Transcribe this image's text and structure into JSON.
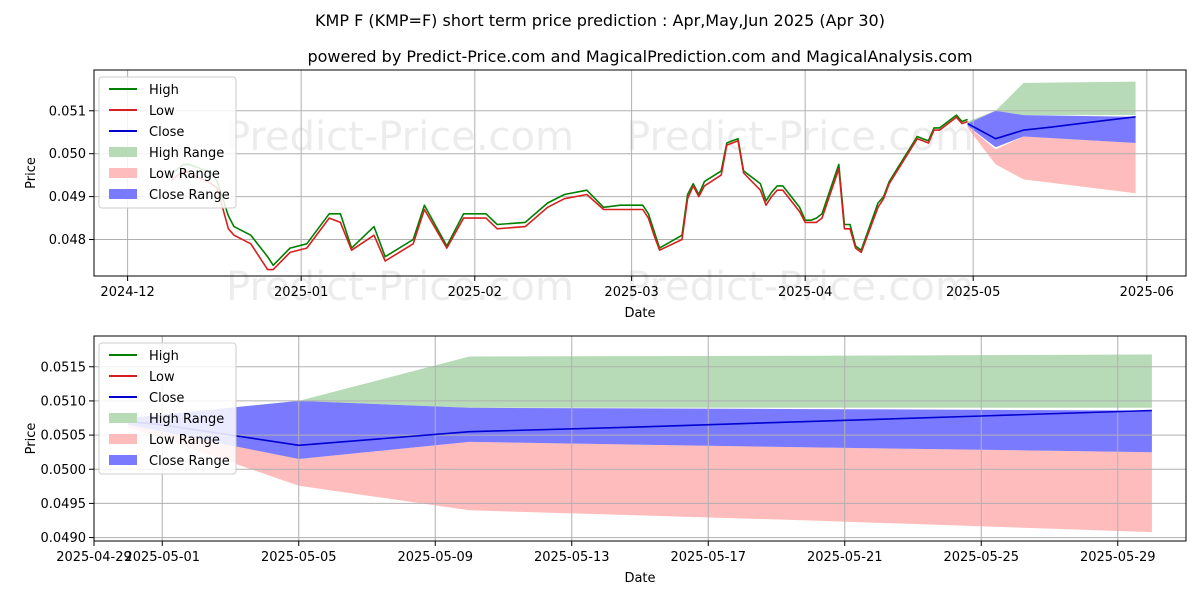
{
  "title": "KMP F (KMP=F) short term price prediction : Apr,May,Jun 2025 (Apr 30)",
  "subtitle": "powered by Predict-Price.com and MagicalPrediction.com and MagicalAnalysis.com",
  "watermark": "Predict-Price.com",
  "colors": {
    "high": "#008000",
    "low": "#d62020",
    "close": "#0000d0",
    "high_range": "#b7dbb7",
    "low_range": "#ffbcbc",
    "close_range": "#7a7aff"
  },
  "chart_data": [
    {
      "type": "line",
      "xlabel": "Date",
      "ylabel": "Price",
      "x_ticks": [
        "2024-12",
        "2025-01",
        "2025-02",
        "2025-03",
        "2025-04",
        "2025-05",
        "2025-06"
      ],
      "y_ticks": [
        "0.048",
        "0.049",
        "0.050",
        "0.051"
      ],
      "xlim": [
        "2024-11-25",
        "2025-06-08"
      ],
      "ylim": [
        0.04715,
        0.05195
      ],
      "grid": true,
      "legend": "upper left",
      "legend_entries": [
        "High",
        "Low",
        "Close",
        "High Range",
        "Low Range",
        "Close Range"
      ],
      "series": [
        {
          "name": "High",
          "x": [
            "2024-12-09",
            "2024-12-11",
            "2024-12-12",
            "2024-12-16",
            "2024-12-17",
            "2024-12-19",
            "2024-12-20",
            "2024-12-23",
            "2024-12-26",
            "2024-12-27",
            "2024-12-30",
            "2025-01-02",
            "2025-01-06",
            "2025-01-08",
            "2025-01-10",
            "2025-01-14",
            "2025-01-16",
            "2025-01-21",
            "2025-01-23",
            "2025-01-27",
            "2025-01-30",
            "2025-02-03",
            "2025-02-05",
            "2025-02-10",
            "2025-02-14",
            "2025-02-17",
            "2025-02-21",
            "2025-02-24",
            "2025-02-27",
            "2025-03-03",
            "2025-03-04",
            "2025-03-05",
            "2025-03-06",
            "2025-03-10",
            "2025-03-11",
            "2025-03-12",
            "2025-03-13",
            "2025-03-14",
            "2025-03-17",
            "2025-03-18",
            "2025-03-19",
            "2025-03-20",
            "2025-03-21",
            "2025-03-24",
            "2025-03-25",
            "2025-03-26",
            "2025-03-27",
            "2025-03-28",
            "2025-03-31",
            "2025-04-01",
            "2025-04-02",
            "2025-04-03",
            "2025-04-04",
            "2025-04-07",
            "2025-04-08",
            "2025-04-09",
            "2025-04-10",
            "2025-04-11",
            "2025-04-14",
            "2025-04-15",
            "2025-04-16",
            "2025-04-21",
            "2025-04-22",
            "2025-04-23",
            "2025-04-24",
            "2025-04-25",
            "2025-04-28",
            "2025-04-29",
            "2025-04-30"
          ],
          "values": [
            0.04955,
            0.04975,
            0.04975,
            0.04955,
            0.04935,
            0.04855,
            0.0483,
            0.0481,
            0.0476,
            0.0474,
            0.0478,
            0.0479,
            0.0486,
            0.0486,
            0.0478,
            0.0483,
            0.0476,
            0.048,
            0.0488,
            0.04785,
            0.0486,
            0.0486,
            0.04835,
            0.0484,
            0.04885,
            0.04905,
            0.04915,
            0.04875,
            0.0488,
            0.0488,
            0.0486,
            0.0482,
            0.0478,
            0.0481,
            0.04905,
            0.0493,
            0.04905,
            0.04935,
            0.0496,
            0.05025,
            0.0503,
            0.05035,
            0.0496,
            0.0493,
            0.0489,
            0.0491,
            0.04925,
            0.04925,
            0.04875,
            0.04845,
            0.04845,
            0.0485,
            0.0486,
            0.04975,
            0.04835,
            0.04835,
            0.04785,
            0.04775,
            0.04885,
            0.049,
            0.04935,
            0.0504,
            0.05035,
            0.0503,
            0.0506,
            0.0506,
            0.0509,
            0.05075,
            0.0508
          ]
        },
        {
          "name": "Low",
          "x": [
            "2024-12-09",
            "2024-12-11",
            "2024-12-12",
            "2024-12-16",
            "2024-12-17",
            "2024-12-19",
            "2024-12-20",
            "2024-12-23",
            "2024-12-26",
            "2024-12-27",
            "2024-12-30",
            "2025-01-02",
            "2025-01-06",
            "2025-01-08",
            "2025-01-10",
            "2025-01-14",
            "2025-01-16",
            "2025-01-21",
            "2025-01-23",
            "2025-01-27",
            "2025-01-30",
            "2025-02-03",
            "2025-02-05",
            "2025-02-10",
            "2025-02-14",
            "2025-02-17",
            "2025-02-21",
            "2025-02-24",
            "2025-02-27",
            "2025-03-03",
            "2025-03-04",
            "2025-03-05",
            "2025-03-06",
            "2025-03-10",
            "2025-03-11",
            "2025-03-12",
            "2025-03-13",
            "2025-03-14",
            "2025-03-17",
            "2025-03-18",
            "2025-03-19",
            "2025-03-20",
            "2025-03-21",
            "2025-03-24",
            "2025-03-25",
            "2025-03-26",
            "2025-03-27",
            "2025-03-28",
            "2025-03-31",
            "2025-04-01",
            "2025-04-02",
            "2025-04-03",
            "2025-04-04",
            "2025-04-07",
            "2025-04-08",
            "2025-04-09",
            "2025-04-10",
            "2025-04-11",
            "2025-04-14",
            "2025-04-15",
            "2025-04-16",
            "2025-04-21",
            "2025-04-22",
            "2025-04-23",
            "2025-04-24",
            "2025-04-25",
            "2025-04-28",
            "2025-04-29",
            "2025-04-30"
          ],
          "values": [
            0.0494,
            0.0496,
            0.04955,
            0.0493,
            0.0492,
            0.04825,
            0.0481,
            0.0479,
            0.0473,
            0.0473,
            0.0477,
            0.0478,
            0.0485,
            0.0484,
            0.04775,
            0.0481,
            0.0475,
            0.0479,
            0.0487,
            0.0478,
            0.0485,
            0.0485,
            0.04825,
            0.0483,
            0.04875,
            0.04895,
            0.04905,
            0.0487,
            0.0487,
            0.0487,
            0.0485,
            0.0481,
            0.04775,
            0.048,
            0.04895,
            0.04925,
            0.049,
            0.04925,
            0.0495,
            0.0502,
            0.05025,
            0.0503,
            0.04955,
            0.04915,
            0.0488,
            0.049,
            0.04915,
            0.04915,
            0.04865,
            0.0484,
            0.0484,
            0.0484,
            0.0485,
            0.04965,
            0.04825,
            0.04825,
            0.0478,
            0.0477,
            0.04875,
            0.04895,
            0.0493,
            0.05035,
            0.0503,
            0.05025,
            0.05055,
            0.05055,
            0.05085,
            0.0507,
            0.05075
          ]
        },
        {
          "name": "Close",
          "x": [
            "2025-04-30",
            "2025-05-05",
            "2025-05-10",
            "2025-05-15",
            "2025-05-20",
            "2025-05-25",
            "2025-05-30"
          ],
          "values": [
            0.0507,
            0.05035,
            0.05055,
            0.05062,
            0.0507,
            0.05078,
            0.05086
          ]
        }
      ],
      "ranges": [
        {
          "name": "High Range",
          "x": [
            "2025-04-30",
            "2025-05-05",
            "2025-05-10",
            "2025-05-30"
          ],
          "upper": [
            0.05075,
            0.051,
            0.05165,
            0.05168
          ],
          "lower": [
            0.0507,
            0.051,
            0.0509,
            0.0509
          ]
        },
        {
          "name": "Low Range",
          "x": [
            "2025-04-30",
            "2025-05-05",
            "2025-05-10",
            "2025-05-30"
          ],
          "upper": [
            0.05065,
            0.0501,
            0.0504,
            0.05025
          ],
          "lower": [
            0.0506,
            0.04975,
            0.0494,
            0.04908
          ]
        },
        {
          "name": "Close Range",
          "x": [
            "2025-04-30",
            "2025-05-05",
            "2025-05-10",
            "2025-05-30"
          ],
          "upper": [
            0.0507,
            0.051,
            0.0509,
            0.05086
          ],
          "lower": [
            0.05065,
            0.05015,
            0.0504,
            0.05025
          ]
        }
      ]
    },
    {
      "type": "line",
      "xlabel": "Date",
      "ylabel": "Price",
      "x_ticks": [
        "2025-04-29",
        "2025-05-01",
        "2025-05-05",
        "2025-05-09",
        "2025-05-13",
        "2025-05-17",
        "2025-05-21",
        "2025-05-25",
        "2025-05-29"
      ],
      "y_ticks": [
        "0.0490",
        "0.0495",
        "0.0500",
        "0.0505",
        "0.0510",
        "0.0515"
      ],
      "xlim": [
        "2025-04-29",
        "2025-05-31"
      ],
      "ylim": [
        0.04895,
        0.05195
      ],
      "grid": true,
      "legend": "upper left",
      "legend_entries": [
        "High",
        "Low",
        "Close",
        "High Range",
        "Low Range",
        "Close Range"
      ],
      "series": [
        {
          "name": "Close",
          "x": [
            "2025-04-30",
            "2025-05-01",
            "2025-05-05",
            "2025-05-10",
            "2025-05-15",
            "2025-05-20",
            "2025-05-25",
            "2025-05-30"
          ],
          "values": [
            0.0507,
            0.05065,
            0.05035,
            0.05055,
            0.05062,
            0.0507,
            0.05078,
            0.05086
          ]
        }
      ],
      "ranges": [
        {
          "name": "High Range",
          "x": [
            "2025-04-30",
            "2025-05-05",
            "2025-05-10",
            "2025-05-20",
            "2025-05-30"
          ],
          "upper": [
            0.05075,
            0.051,
            0.05165,
            0.05166,
            0.05168
          ],
          "lower": [
            0.0507,
            0.051,
            0.0509,
            0.0509,
            0.0509
          ]
        },
        {
          "name": "Low Range",
          "x": [
            "2025-04-30",
            "2025-05-05",
            "2025-05-10",
            "2025-05-20",
            "2025-05-30"
          ],
          "upper": [
            0.05068,
            0.05015,
            0.0504,
            0.05032,
            0.05025
          ],
          "lower": [
            0.05062,
            0.04976,
            0.0494,
            0.04925,
            0.04908
          ]
        },
        {
          "name": "Close Range",
          "x": [
            "2025-04-30",
            "2025-05-05",
            "2025-05-10",
            "2025-05-20",
            "2025-05-30"
          ],
          "upper": [
            0.05075,
            0.051,
            0.0509,
            0.05088,
            0.05086
          ],
          "lower": [
            0.05065,
            0.05015,
            0.0504,
            0.05032,
            0.05025
          ]
        }
      ]
    }
  ]
}
